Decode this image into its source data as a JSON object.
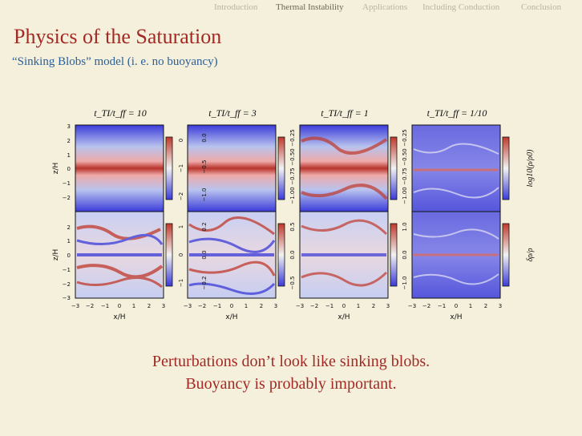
{
  "nav": {
    "items": [
      "Introduction",
      "Thermal Instability",
      "Applications",
      "Including Conduction",
      "Conclusion"
    ],
    "active": "Thermal Instability"
  },
  "slide": {
    "title": "Physics of the Saturation",
    "subtitle": "“Sinking Blobs” model (i. e. no buoyancy)"
  },
  "figure": {
    "panel_titles": [
      "t_TI/t_ff = 10",
      "t_TI/t_ff = 3",
      "t_TI/t_ff = 1",
      "t_TI/t_ff = 1/10"
    ],
    "ylabel": "z/H",
    "xlabel": "x/H",
    "x_ticks": [
      "−3",
      "−2",
      "−1",
      "0",
      "1",
      "2",
      "3"
    ],
    "y_ticks": [
      "3",
      "2",
      "1",
      "0",
      "−1",
      "−2",
      "−3"
    ],
    "top_row_colorbar_label": "log10(ρ/ρ0)",
    "bottom_row_colorbar_label": "δρ/ρ",
    "colorbar_ticks_top": [
      [
        "0",
        "−1",
        "−2"
      ],
      [
        "0.0",
        "−0.5",
        "−1.0"
      ],
      [
        "−0.25",
        "−0.50",
        "−0.75",
        "−1.00"
      ],
      [
        "−0.25",
        "−0.50",
        "−0.75",
        "−1.00"
      ]
    ],
    "colorbar_ticks_bottom": [
      [
        "1",
        "0",
        "−1"
      ],
      [
        "0.2",
        "0.0",
        "−0.2"
      ],
      [
        "0.5",
        "0.0",
        "−0.5"
      ],
      [
        "1.0",
        "0.0",
        "−1.0"
      ]
    ],
    "colormap": {
      "high": "#c0392b",
      "mid": "#f2f2f2",
      "low": "#3a3ad8"
    }
  },
  "conclusion": {
    "line1": "Perturbations don’t look like sinking blobs.",
    "line2": "Buoyancy is probably important."
  }
}
